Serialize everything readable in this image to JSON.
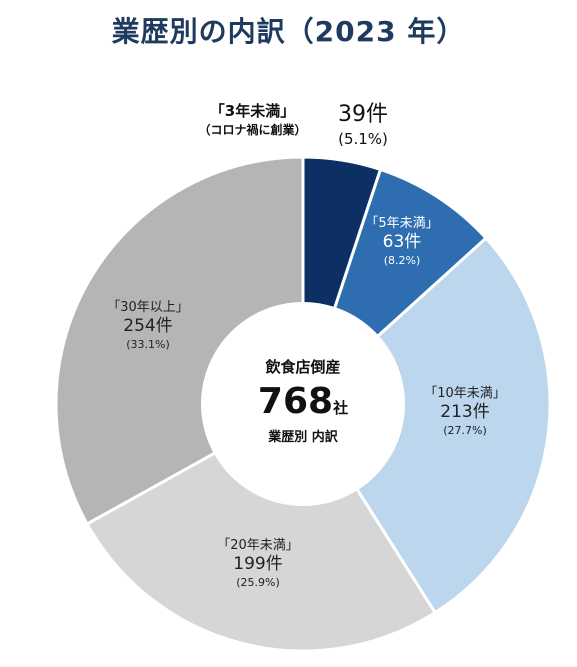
{
  "title": "業歴別の内訳（2023 年）",
  "center": {
    "line1": "飲食店倒産",
    "total": "768",
    "unit": "社",
    "line3": "業歴別 内訳"
  },
  "chart_data": {
    "type": "pie",
    "title": "業歴別の内訳（2023 年）",
    "total": 768,
    "unit": "件",
    "slices": [
      {
        "name": "「3年未満」",
        "note": "（コロナ禍に創業）",
        "value": 39,
        "count_label": "39件",
        "percent": 5.1,
        "percent_label": "(5.1%)",
        "color": "#0d2f63"
      },
      {
        "name": "「5年未満」",
        "value": 63,
        "count_label": "63件",
        "percent": 8.2,
        "percent_label": "(8.2%)",
        "color": "#2e6db0"
      },
      {
        "name": "「10年未満」",
        "value": 213,
        "count_label": "213件",
        "percent": 27.7,
        "percent_label": "(27.7%)",
        "color": "#bcd6ee"
      },
      {
        "name": "「20年未満」",
        "value": 199,
        "count_label": "199件",
        "percent": 25.9,
        "percent_label": "(25.9%)",
        "color": "#d6d6d6"
      },
      {
        "name": "「30年以上」",
        "value": 254,
        "count_label": "254件",
        "percent": 33.1,
        "percent_label": "(33.1%)",
        "color": "#b5b5b5"
      }
    ]
  }
}
